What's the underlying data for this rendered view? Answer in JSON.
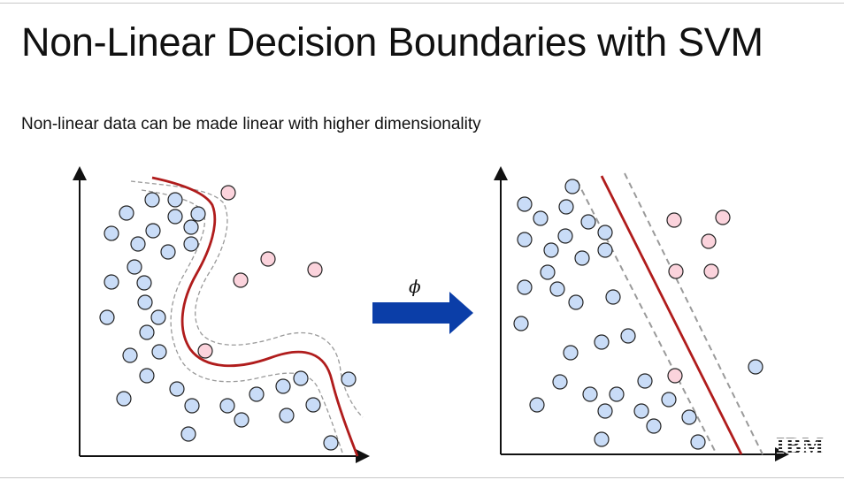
{
  "slide": {
    "title": "Non-Linear Decision Boundaries with SVM",
    "subtitle": "Non-linear data can be made linear with higher dimensionality",
    "transform_label": "ϕ",
    "logo_text": "IBM"
  },
  "colors": {
    "class_a_fill": "#c9dcf7",
    "class_b_fill": "#fbd3dc",
    "point_stroke": "#222222",
    "boundary": "#b01c1c",
    "margin": "#9a9a9a",
    "arrow": "#0b3ea8",
    "axis": "#111111"
  },
  "icons": [
    "up-arrow-axis",
    "right-arrow-axis",
    "transform-arrow",
    "ibm-logo"
  ]
}
